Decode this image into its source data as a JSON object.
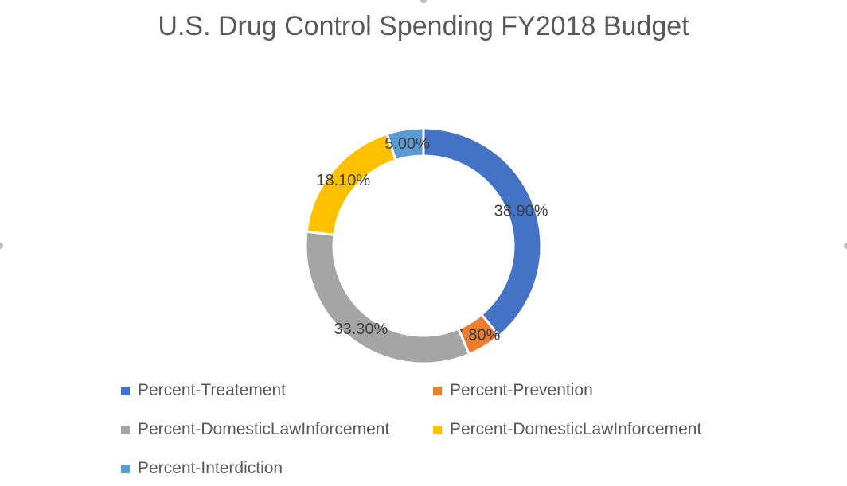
{
  "chart_data": {
    "type": "pie",
    "variant": "doughnut",
    "title": "U.S. Drug Control Spending FY2018 Budget",
    "legend_position": "bottom",
    "slices": [
      {
        "name": "Percent-Treatement",
        "value": 38.9,
        "label": "38.90%",
        "color": "#4472C4"
      },
      {
        "name": "Percent-Prevention",
        "value": 4.8,
        "label": "4.80%",
        "color": "#ED7D31"
      },
      {
        "name": "Percent-DomesticLawInforcement",
        "value": 33.3,
        "label": "33.30%",
        "color": "#A5A5A5"
      },
      {
        "name": "Percent-DomesticLawInforcement",
        "value": 18.1,
        "label": "18.10%",
        "color": "#FFC000"
      },
      {
        "name": "Percent-Interdiction",
        "value": 5.0,
        "label": "5.00%",
        "color": "#5B9BD5"
      }
    ]
  }
}
